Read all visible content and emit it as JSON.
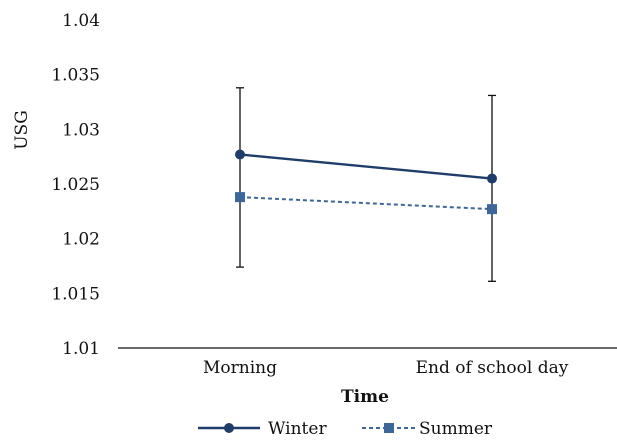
{
  "chart_data": {
    "type": "line",
    "xlabel": "Time",
    "ylabel": "USG",
    "categories": [
      "Morning",
      "End of school day"
    ],
    "ylim": [
      1.01,
      1.04
    ],
    "yticks": [
      "1.01",
      "1.015",
      "1.02",
      "1.025",
      "1.03",
      "1.035",
      "1.04"
    ],
    "grid": false,
    "legend_position": "bottom",
    "series": [
      {
        "name": "Winter",
        "values": [
          1.0277,
          1.0255
        ],
        "error_upper": [
          1.0338,
          1.0331
        ],
        "error_lower": [
          1.0174,
          1.0161
        ],
        "marker": "circle",
        "line_style": "solid",
        "color": "#1f3d6b"
      },
      {
        "name": "Summer",
        "values": [
          1.0238,
          1.0227
        ],
        "marker": "square",
        "line_style": "dashed",
        "color": "#3d6699"
      }
    ]
  }
}
